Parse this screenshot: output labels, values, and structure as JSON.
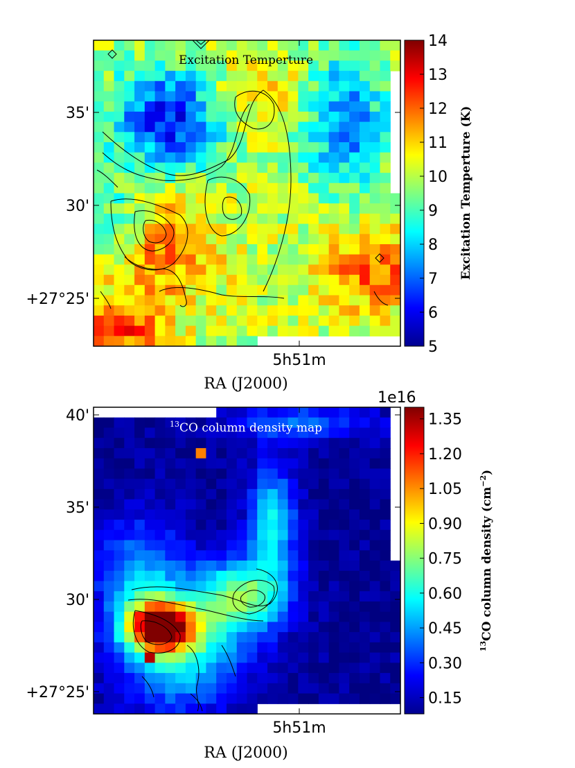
{
  "chart_data": [
    {
      "type": "heatmap",
      "title": "Excitation Temperture",
      "xlabel": "RA (J2000)",
      "ylabel": "",
      "x_ticks": [
        "5h51m"
      ],
      "y_ticks": [
        "+27°25'",
        "30'",
        "35'"
      ],
      "colorbar": {
        "label": "Excitation Temperture (K)",
        "min": 5,
        "max": 14,
        "ticks": [
          "5",
          "6",
          "7",
          "8",
          "9",
          "10",
          "11",
          "12",
          "13",
          "14"
        ],
        "colormap": "jet"
      },
      "contours": true,
      "grid": false
    },
    {
      "type": "heatmap",
      "title": "13CO column density map",
      "title_superscript": "13",
      "title_text": "CO column density map",
      "xlabel": "RA (J2000)",
      "ylabel": "",
      "x_ticks": [
        "5h51m"
      ],
      "y_ticks": [
        "+27°25'",
        "30'",
        "35'",
        "40'"
      ],
      "colorbar": {
        "label": "13CO column density (cm−2)",
        "label_sup": "13",
        "label_text": "CO column density (cm",
        "label_exp": "−2",
        "label_close": ")",
        "multiplier": "1e16",
        "min": 0.08,
        "max": 1.4,
        "ticks": [
          "0.15",
          "0.30",
          "0.45",
          "0.60",
          "0.75",
          "0.90",
          "1.05",
          "1.20",
          "1.35"
        ],
        "colormap": "jet"
      },
      "contours": true,
      "grid": false
    }
  ]
}
